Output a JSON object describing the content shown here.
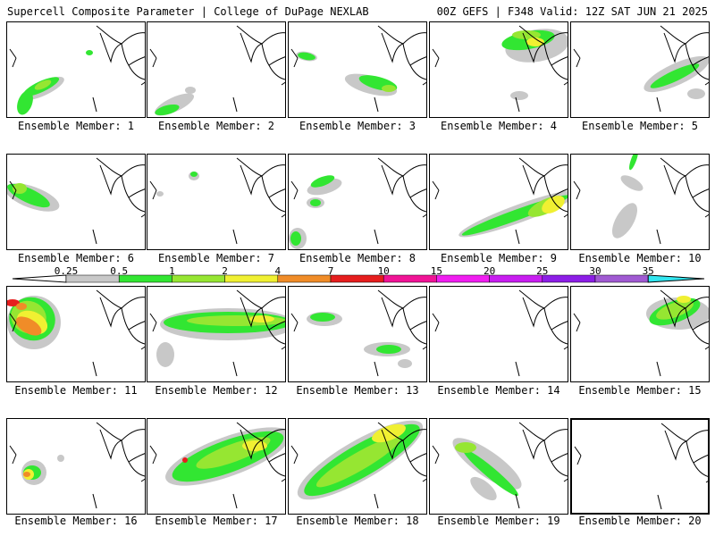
{
  "header": {
    "left": "Supercell Composite Parameter | College of DuPage NEXLAB",
    "right": "00Z GEFS | F348 Valid: 12Z SAT JUN 21 2025"
  },
  "legend": {
    "ticks": [
      "0.25",
      "0.5",
      "1",
      "2",
      "4",
      "7",
      "10",
      "15",
      "20",
      "25",
      "30",
      "35"
    ],
    "colors": [
      "#c8c8c8",
      "#32e632",
      "#96e632",
      "#f0f032",
      "#f08c28",
      "#e61e1e",
      "#f01496",
      "#f01ef0",
      "#c81ef0",
      "#8c1ee6",
      "#a05ad2",
      "#32e6f0"
    ]
  },
  "members": [
    {
      "label": "Ensemble Member: 1"
    },
    {
      "label": "Ensemble Member: 2"
    },
    {
      "label": "Ensemble Member: 3"
    },
    {
      "label": "Ensemble Member: 4"
    },
    {
      "label": "Ensemble Member: 5"
    },
    {
      "label": "Ensemble Member: 6"
    },
    {
      "label": "Ensemble Member: 7"
    },
    {
      "label": "Ensemble Member: 8"
    },
    {
      "label": "Ensemble Member: 9"
    },
    {
      "label": "Ensemble Member: 10"
    },
    {
      "label": "Ensemble Member: 11"
    },
    {
      "label": "Ensemble Member: 12"
    },
    {
      "label": "Ensemble Member: 13"
    },
    {
      "label": "Ensemble Member: 14"
    },
    {
      "label": "Ensemble Member: 15"
    },
    {
      "label": "Ensemble Member: 16"
    },
    {
      "label": "Ensemble Member: 17"
    },
    {
      "label": "Ensemble Member: 18"
    },
    {
      "label": "Ensemble Member: 19"
    },
    {
      "label": "Ensemble Member: 20"
    }
  ]
}
